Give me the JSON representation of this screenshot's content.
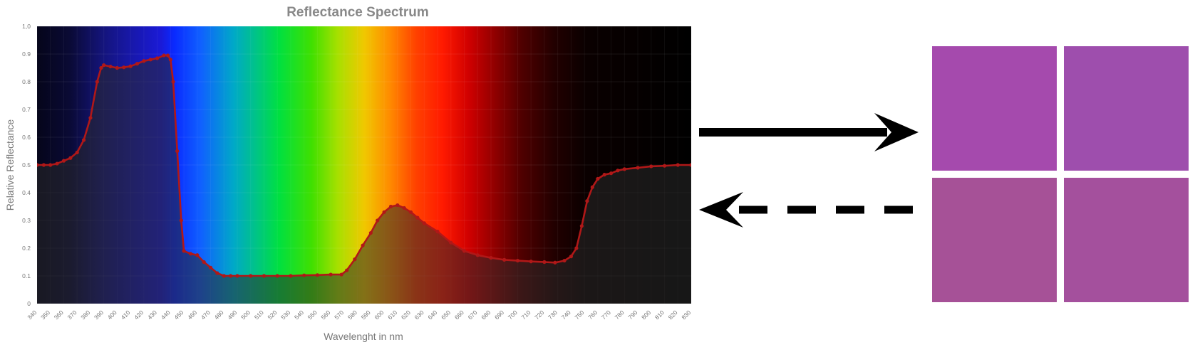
{
  "chart_data": {
    "type": "line",
    "title": "Reflectance Spectrum",
    "xlabel": "Wavelenght in nm",
    "ylabel": "Relative Reflectance",
    "xlim": [
      340,
      830
    ],
    "ylim": [
      0,
      1.0
    ],
    "grid": true,
    "x_ticks": [
      340,
      350,
      360,
      370,
      380,
      390,
      400,
      410,
      420,
      430,
      440,
      450,
      460,
      470,
      480,
      490,
      500,
      510,
      520,
      530,
      540,
      550,
      560,
      570,
      580,
      590,
      600,
      610,
      620,
      630,
      640,
      650,
      660,
      670,
      680,
      690,
      700,
      710,
      720,
      730,
      740,
      750,
      760,
      770,
      780,
      790,
      800,
      810,
      820,
      830
    ],
    "y_ticks": [
      {
        "value": 0,
        "label": "0"
      },
      {
        "value": 0.1,
        "label": "0.1"
      },
      {
        "value": 0.2,
        "label": "0.2"
      },
      {
        "value": 0.3,
        "label": "0.3"
      },
      {
        "value": 0.4,
        "label": "0.4"
      },
      {
        "value": 0.5,
        "label": "0.5"
      },
      {
        "value": 0.6,
        "label": "0.6"
      },
      {
        "value": 0.7,
        "label": "0.7"
      },
      {
        "value": 0.8,
        "label": "0.8"
      },
      {
        "value": 0.9,
        "label": "0.9"
      },
      {
        "value": 1.0,
        "label": "1,0"
      }
    ],
    "series": [
      {
        "color": "#b01818",
        "points": [
          [
            340,
            0.5
          ],
          [
            345,
            0.5
          ],
          [
            350,
            0.5
          ],
          [
            355,
            0.505
          ],
          [
            360,
            0.515
          ],
          [
            365,
            0.525
          ],
          [
            370,
            0.545
          ],
          [
            375,
            0.59
          ],
          [
            380,
            0.67
          ],
          [
            385,
            0.8
          ],
          [
            388,
            0.85
          ],
          [
            390,
            0.86
          ],
          [
            395,
            0.855
          ],
          [
            400,
            0.85
          ],
          [
            405,
            0.852
          ],
          [
            410,
            0.856
          ],
          [
            415,
            0.865
          ],
          [
            420,
            0.875
          ],
          [
            425,
            0.88
          ],
          [
            430,
            0.885
          ],
          [
            435,
            0.895
          ],
          [
            438,
            0.895
          ],
          [
            440,
            0.88
          ],
          [
            442,
            0.8
          ],
          [
            445,
            0.55
          ],
          [
            448,
            0.3
          ],
          [
            450,
            0.19
          ],
          [
            455,
            0.18
          ],
          [
            460,
            0.175
          ],
          [
            465,
            0.15
          ],
          [
            470,
            0.13
          ],
          [
            475,
            0.11
          ],
          [
            480,
            0.1
          ],
          [
            485,
            0.1
          ],
          [
            490,
            0.1
          ],
          [
            500,
            0.1
          ],
          [
            510,
            0.1
          ],
          [
            520,
            0.1
          ],
          [
            530,
            0.1
          ],
          [
            540,
            0.102
          ],
          [
            550,
            0.103
          ],
          [
            560,
            0.105
          ],
          [
            568,
            0.105
          ],
          [
            572,
            0.12
          ],
          [
            578,
            0.16
          ],
          [
            584,
            0.21
          ],
          [
            590,
            0.255
          ],
          [
            595,
            0.3
          ],
          [
            600,
            0.33
          ],
          [
            605,
            0.35
          ],
          [
            610,
            0.355
          ],
          [
            615,
            0.345
          ],
          [
            620,
            0.33
          ],
          [
            625,
            0.31
          ],
          [
            630,
            0.29
          ],
          [
            640,
            0.26
          ],
          [
            650,
            0.22
          ],
          [
            660,
            0.19
          ],
          [
            670,
            0.175
          ],
          [
            680,
            0.165
          ],
          [
            690,
            0.158
          ],
          [
            700,
            0.155
          ],
          [
            710,
            0.152
          ],
          [
            720,
            0.15
          ],
          [
            728,
            0.148
          ],
          [
            735,
            0.155
          ],
          [
            740,
            0.17
          ],
          [
            744,
            0.2
          ],
          [
            748,
            0.28
          ],
          [
            752,
            0.37
          ],
          [
            756,
            0.42
          ],
          [
            760,
            0.45
          ],
          [
            765,
            0.465
          ],
          [
            770,
            0.47
          ],
          [
            775,
            0.48
          ],
          [
            780,
            0.485
          ],
          [
            790,
            0.49
          ],
          [
            800,
            0.495
          ],
          [
            810,
            0.497
          ],
          [
            820,
            0.5
          ],
          [
            830,
            0.5
          ]
        ]
      }
    ]
  },
  "arrows": {
    "forward_style": "solid",
    "back_style": "dashed",
    "color": "#000000"
  },
  "swatches": [
    {
      "color": "#a54aad"
    },
    {
      "color": "#9e4ead"
    },
    {
      "color": "#a65197"
    },
    {
      "color": "#a4509d"
    }
  ]
}
